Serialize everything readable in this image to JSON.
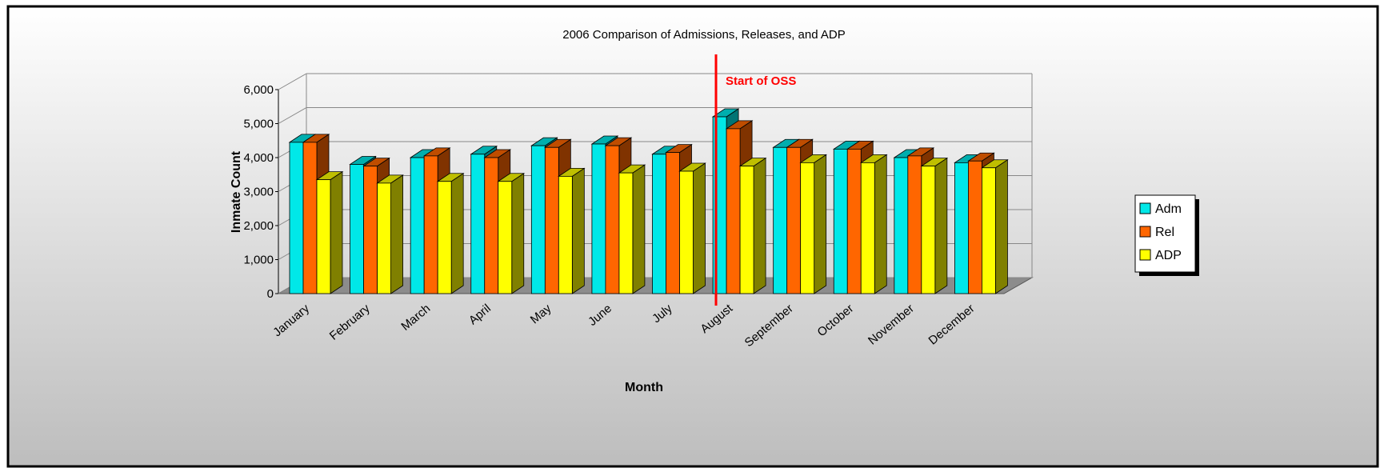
{
  "chart_data": {
    "type": "bar3d",
    "title": "2006 Comparison of Admissions, Releases, and ADP",
    "x_label": "Month",
    "y_label": "Inmate Count",
    "annotation": "Start of OSS",
    "categories": [
      "January",
      "February",
      "March",
      "April",
      "May",
      "June",
      "July",
      "August",
      "September",
      "October",
      "November",
      "December"
    ],
    "series": [
      {
        "name": "Adm",
        "color": "#00e8e8",
        "values": [
          4450,
          3800,
          4000,
          4100,
          4350,
          4400,
          4100,
          5200,
          4300,
          4250,
          4000,
          3850
        ]
      },
      {
        "name": "Rel",
        "color": "#ff6600",
        "values": [
          4450,
          3750,
          4050,
          4000,
          4300,
          4350,
          4150,
          4850,
          4300,
          4250,
          4050,
          3900
        ]
      },
      {
        "name": "ADP",
        "color": "#ffff00",
        "values": [
          3350,
          3250,
          3300,
          3300,
          3450,
          3550,
          3600,
          3750,
          3850,
          3850,
          3750,
          3700
        ]
      }
    ],
    "ylim": [
      0,
      6000
    ],
    "yticks": [
      0,
      {
        "value": 1000,
        "label": "1,000"
      },
      {
        "value": 2000,
        "label": "2,000"
      },
      {
        "value": 3000,
        "label": "3,000"
      },
      {
        "value": 4000,
        "label": "4,000"
      },
      {
        "value": 5000,
        "label": "5,000"
      },
      {
        "value": 6000,
        "label": "6,000"
      }
    ],
    "legend": "right"
  }
}
